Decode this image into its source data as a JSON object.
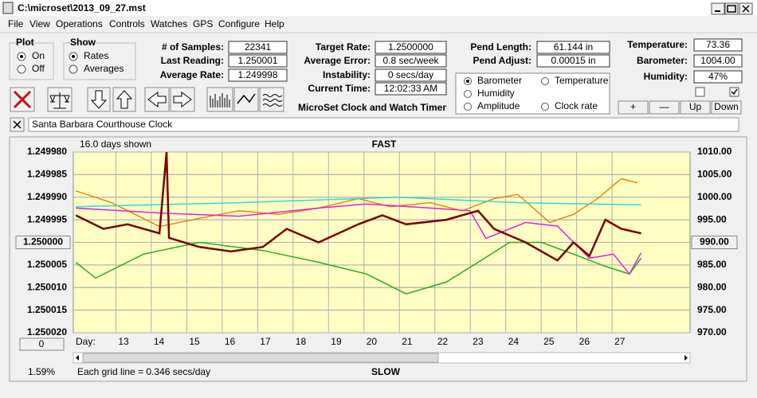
{
  "window": {
    "title": "C:\\microset\\2013_09_27.mst"
  },
  "menu": [
    "File",
    "View",
    "Operations",
    "Controls",
    "Watches",
    "GPS",
    "Configure",
    "Help"
  ],
  "plot_group": {
    "title": "Plot",
    "options": [
      "On",
      "Off"
    ],
    "selected": 0
  },
  "show_group": {
    "title": "Show",
    "options": [
      "Rates",
      "Averages"
    ],
    "selected": 0
  },
  "fields": [
    {
      "label": "# of Samples:",
      "value": "22341"
    },
    {
      "label": "Last Reading:",
      "value": "1.250001"
    },
    {
      "label": "Average Rate:",
      "value": "1.249998"
    },
    {
      "label": "Target Rate:",
      "value": "1.2500000"
    },
    {
      "label": "Average Error:",
      "value": "0.8 sec/week"
    },
    {
      "label": "Instability:",
      "value": "0 secs/day"
    },
    {
      "label": "Current Time:",
      "value": "12:02:33 AM"
    },
    {
      "label": "Pend Length:",
      "value": "61.144 in"
    },
    {
      "label": "Pend Adjust:",
      "value": "0.00015 in"
    },
    {
      "label": "Temperature:",
      "value": "73.36"
    },
    {
      "label": "Barometer:",
      "value": "1004.00"
    },
    {
      "label": "Humidity:",
      "value": "47%"
    }
  ],
  "app_title": "MicroSet Clock and Watch Timer",
  "checkboxes": [
    false,
    true
  ],
  "buttons": [
    "+",
    "—",
    "Up",
    "Down"
  ],
  "watch_name": "Santa Barbara Courthouse Clock",
  "chart_data": {
    "type": "line",
    "title": "FAST",
    "bottom_label": "SLOW",
    "days_shown": "16.0 days shown",
    "grid_note": "Each grid line = 0.346 secs/day",
    "percent": "1.59%",
    "offset_button": "0",
    "xlabel": "Day:",
    "xlim": [
      11.8,
      29.2
    ],
    "xticks": [
      13,
      14,
      15,
      16,
      17,
      18,
      19,
      20,
      21,
      22,
      23,
      24,
      25,
      26,
      27
    ],
    "ylim": [
      1.24998,
      1.25002
    ],
    "y_inverted": true,
    "yticks": [
      {
        "value": 1.24998,
        "label": "1.249980"
      },
      {
        "value": 1.249985,
        "label": "1.249985"
      },
      {
        "value": 1.24999,
        "label": "1.249990"
      },
      {
        "value": 1.249995,
        "label": "1.249995"
      },
      {
        "value": 1.25,
        "label": "1.250000",
        "button": true
      },
      {
        "value": 1.250005,
        "label": "1.250005"
      },
      {
        "value": 1.25001,
        "label": "1.250010"
      },
      {
        "value": 1.250015,
        "label": "1.250015"
      },
      {
        "value": 1.25002,
        "label": "1.250020"
      }
    ],
    "y2lim": [
      970,
      1010
    ],
    "y2ticks": [
      {
        "value": 1010,
        "label": "1010.00"
      },
      {
        "value": 1005,
        "label": "1005.00"
      },
      {
        "value": 1000,
        "label": "1000.00"
      },
      {
        "value": 995,
        "label": "995.00"
      },
      {
        "value": 990,
        "label": "990.00",
        "button": true
      },
      {
        "value": 985,
        "label": "985.00"
      },
      {
        "value": 980,
        "label": "980.00"
      },
      {
        "value": 975,
        "label": "975.00"
      },
      {
        "value": 970,
        "label": "970.00"
      }
    ],
    "grid": true,
    "selected_series": 0,
    "series": [
      {
        "name": "Barometer",
        "color": "#e8870c",
        "axis": "y2",
        "x": [
          11.87,
          12.88,
          14.23,
          15.35,
          16.47,
          17.6,
          18.72,
          19.84,
          20.74,
          21.87,
          22.77,
          23.67,
          24.34,
          25.24,
          25.91,
          26.59,
          27.26,
          27.71
        ],
        "values": [
          1001.4,
          998.8,
          993.5,
          995.3,
          997,
          996.2,
          997.6,
          999.7,
          997.9,
          998.8,
          997,
          999.7,
          1000.6,
          994.4,
          996.2,
          999.7,
          1004.1,
          1003.2
        ]
      },
      {
        "name": "Temperature",
        "color": "#1fae1f",
        "axis": "y2",
        "x": [
          11.87,
          12.43,
          13.78,
          15.35,
          17.15,
          18.72,
          20.07,
          21.19,
          22.32,
          23.22,
          24.11,
          25.01,
          25.91,
          26.81,
          27.49,
          27.82
        ],
        "values": [
          985.6,
          982.1,
          987.4,
          990,
          988.2,
          985.6,
          983,
          978.6,
          981.2,
          985.6,
          990,
          990,
          987.4,
          984.7,
          983,
          986.5
        ]
      },
      {
        "name": "Humidity",
        "color": "#e020e0",
        "axis": "y2",
        "x": [
          11.87,
          14.23,
          16.47,
          18.72,
          20.07,
          21.87,
          22.99,
          23.44,
          24.56,
          25.46,
          26.36,
          27.04,
          27.49,
          27.82
        ],
        "values": [
          997.6,
          996.5,
          995.8,
          997.6,
          998.5,
          997.6,
          997,
          990.9,
          994.4,
          993.6,
          986.5,
          987.4,
          983,
          987.7
        ]
      },
      {
        "name": "Amplitude",
        "color": "#30d8e0",
        "axis": "y2",
        "x": [
          11.87,
          16.47,
          20.97,
          24.34,
          27.82
        ],
        "values": [
          997.9,
          998.8,
          1000,
          998.8,
          998.3
        ]
      },
      {
        "name": "Clock rate",
        "color": "#780000",
        "axis": "y",
        "x": [
          11.87,
          12.65,
          13.33,
          14.23,
          14.43,
          14.5,
          15.35,
          16.25,
          17.15,
          17.82,
          18.72,
          19.84,
          20.52,
          21.19,
          22.32,
          23.22,
          23.67,
          24.56,
          25.46,
          25.91,
          26.36,
          26.81,
          27.26,
          27.82
        ],
        "values": [
          1.249994,
          1.249997,
          1.249996,
          1.249998,
          1.24998,
          1.249999,
          1.250001,
          1.250002,
          1.250001,
          1.249997,
          1.25,
          1.249996,
          1.249994,
          1.249996,
          1.249995,
          1.249993,
          1.249997,
          1.25,
          1.250004,
          1.25,
          1.250003,
          1.249995,
          1.249997,
          1.249998
        ]
      }
    ]
  }
}
